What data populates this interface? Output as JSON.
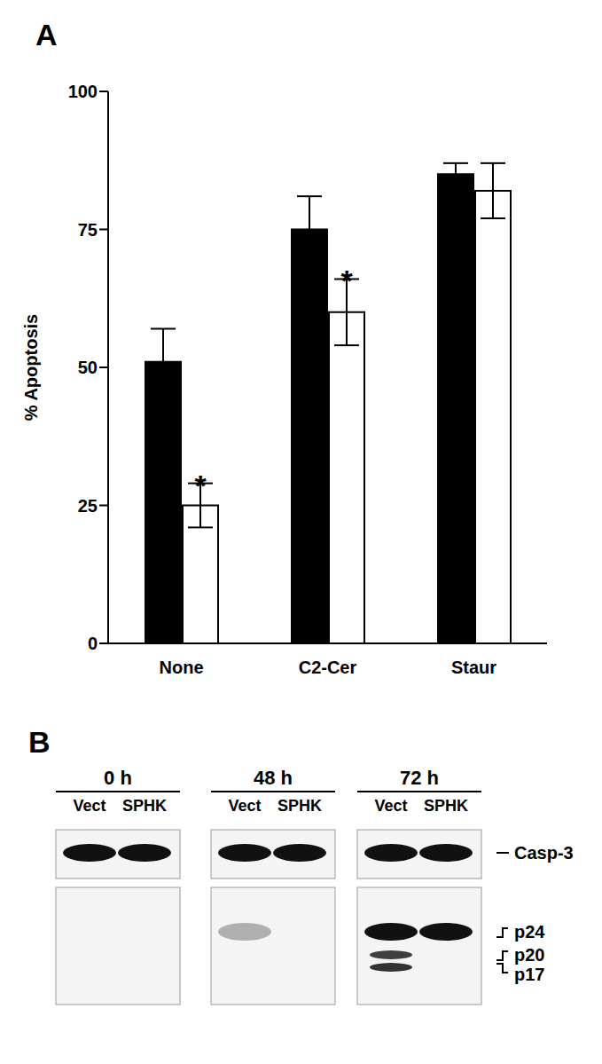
{
  "chart_data": {
    "type": "bar",
    "title": "A",
    "y_label": "% Apoptosis",
    "categories": [
      "None",
      "C2-Cer",
      "Staur"
    ],
    "series": [
      {
        "color": "#000000",
        "values": [
          51,
          75,
          85
        ],
        "errors": [
          6,
          6,
          2
        ]
      },
      {
        "color": "#ffffff",
        "values": [
          25,
          60,
          82
        ],
        "errors": [
          4,
          6,
          5
        ]
      }
    ],
    "annotations": [
      {
        "text": "*",
        "category": "None",
        "series": 1
      },
      {
        "text": "*",
        "category": "C2-Cer",
        "series": 1
      }
    ],
    "ylim": [
      0,
      100
    ],
    "yticks": [
      0,
      25,
      50,
      75,
      100
    ],
    "grid": false
  },
  "blot": {
    "title": "B",
    "timepoints": [
      "0 h",
      "48 h",
      "72 h"
    ],
    "lanes": [
      "Vect",
      "SPHK"
    ],
    "rows": [
      {
        "markers": [
          "Casp-3"
        ],
        "bands": [
          [
            [
              {
                "band": "Casp-3",
                "intensity": 1
              }
            ],
            [
              {
                "band": "Casp-3",
                "intensity": 1
              }
            ]
          ],
          [
            [
              {
                "band": "Casp-3",
                "intensity": 1
              }
            ],
            [
              {
                "band": "Casp-3",
                "intensity": 1
              }
            ]
          ],
          [
            [
              {
                "band": "Casp-3",
                "intensity": 1
              }
            ],
            [
              {
                "band": "Casp-3",
                "intensity": 1
              }
            ]
          ]
        ]
      },
      {
        "markers": [
          "p24",
          "p20",
          "p17"
        ],
        "bands": [
          [
            [],
            []
          ],
          [
            [
              {
                "band": "p24",
                "intensity": 0.3
              }
            ],
            []
          ],
          [
            [
              {
                "band": "p24",
                "intensity": 1
              },
              {
                "band": "p20",
                "intensity": 0.8
              },
              {
                "band": "p17",
                "intensity": 0.85
              }
            ],
            [
              {
                "band": "p24",
                "intensity": 1
              }
            ]
          ]
        ]
      }
    ]
  }
}
